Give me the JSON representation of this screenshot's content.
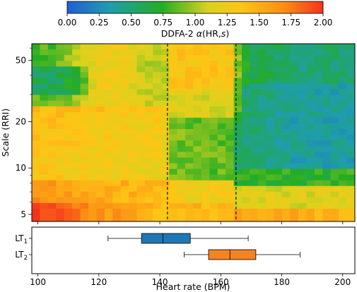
{
  "chart_data": [
    {
      "type": "colorbar",
      "label_main": "DDFA-2 ",
      "label_alpha": "α",
      "label_args": "(HR,",
      "label_s": "s",
      "label_close": ")",
      "ticks": [
        "0.00",
        "0.25",
        "0.50",
        "0.75",
        "1.00",
        "1.25",
        "1.50",
        "1.75",
        "2.00"
      ],
      "tick_values": [
        0,
        0.25,
        0.5,
        0.75,
        1.0,
        1.25,
        1.5,
        1.75,
        2.0
      ],
      "range": [
        0,
        2
      ]
    },
    {
      "type": "heatmap",
      "ylabel": "Scale (RRI)",
      "y_scale": "log",
      "y_ticks": [
        "5",
        "10",
        "20",
        "50"
      ],
      "y_tick_values": [
        5,
        10,
        20,
        50
      ],
      "y_range": [
        4.5,
        64
      ],
      "x_range": [
        98,
        204
      ],
      "x_start": 98,
      "x_step": 2.65,
      "y_levels": [
        64,
        5
      ],
      "n_cols": 40,
      "n_rows": 30,
      "vlines": [
        142.5,
        165
      ],
      "grid": false,
      "colors": [
        "#1f5fd6",
        "#1f9dad",
        "#23ad23",
        "#d8d21e",
        "#ffc516",
        "#fb8d15",
        "#f5331c"
      ]
    },
    {
      "type": "box",
      "xlabel": "Heart rate (BPM)",
      "x_ticks": [
        "100",
        "120",
        "140",
        "160",
        "180",
        "200"
      ],
      "x_tick_values": [
        100,
        120,
        140,
        160,
        180,
        200
      ],
      "x_range": [
        98,
        204
      ],
      "series": [
        {
          "name": "LT",
          "sub": "1",
          "whisker_low": 123,
          "q1": 134,
          "median": 141,
          "q3": 150,
          "whisker_high": 169,
          "color": "#1f77b4"
        },
        {
          "name": "LT",
          "sub": "2",
          "whisker_low": 148,
          "q1": 156,
          "median": 163,
          "q3": 171.5,
          "whisker_high": 186,
          "color": "#f58320"
        }
      ]
    }
  ]
}
